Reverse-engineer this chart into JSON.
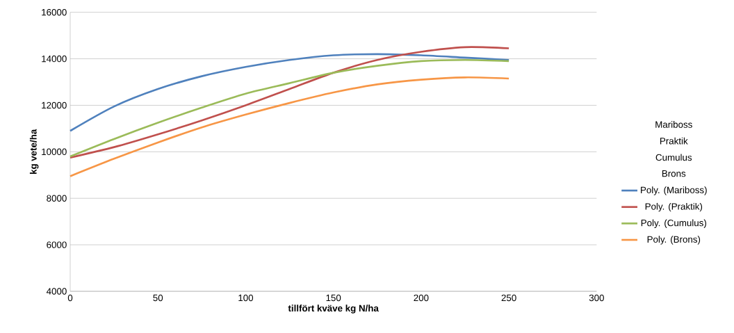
{
  "chart_data": {
    "type": "line",
    "xlabel": "tillfört kväve kg N/ha",
    "ylabel": "kg vete/ha",
    "x": [
      0,
      25,
      50,
      75,
      100,
      125,
      150,
      175,
      200,
      225,
      250
    ],
    "series": [
      {
        "name": "Poly. (Mariboss)",
        "color": "#4f81bd",
        "values": [
          10900,
          11950,
          12700,
          13250,
          13650,
          13950,
          14150,
          14200,
          14150,
          14050,
          13950
        ]
      },
      {
        "name": "Poly. (Praktik)",
        "color": "#c0504d",
        "values": [
          9750,
          10200,
          10750,
          11350,
          12000,
          12700,
          13400,
          13950,
          14300,
          14500,
          14450
        ]
      },
      {
        "name": "Poly. (Cumulus)",
        "color": "#9bbb59",
        "values": [
          9800,
          10550,
          11250,
          11900,
          12500,
          12950,
          13400,
          13700,
          13900,
          13950,
          13900
        ]
      },
      {
        "name": "Poly. (Brons)",
        "color": "#f79646",
        "values": [
          8950,
          9700,
          10400,
          11050,
          11600,
          12100,
          12550,
          12900,
          13100,
          13200,
          13150
        ]
      }
    ],
    "annotations": [
      "Mariboss",
      "Praktik",
      "Cumulus",
      "Brons"
    ],
    "xlim": [
      0,
      300
    ],
    "xticks": [
      0,
      50,
      100,
      150,
      200,
      250,
      300
    ],
    "ylim": [
      4000,
      16000
    ],
    "yticks": [
      4000,
      6000,
      8000,
      10000,
      12000,
      14000,
      16000
    ],
    "grid": "y",
    "legend": "right",
    "marker": "none",
    "line_style": "solid"
  }
}
